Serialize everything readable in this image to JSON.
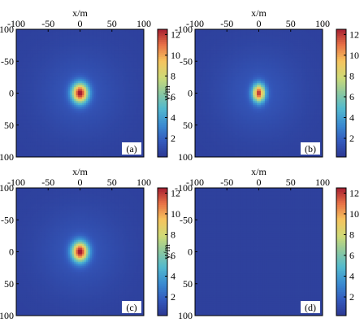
{
  "chart_data": [
    {
      "type": "heatmap",
      "panel_label": "(a)",
      "xlabel": "x/m",
      "ylabel": "y/m",
      "x_ticks": [
        "-100",
        "-50",
        "0",
        "50",
        "100"
      ],
      "y_ticks": [
        "-100",
        "-50",
        "0",
        "50",
        "100"
      ],
      "xlim": [
        -100,
        100
      ],
      "ylim": [
        100,
        -100
      ],
      "colorbar": {
        "ticks": [
          "12",
          "10",
          "8",
          "6",
          "4",
          "2"
        ],
        "range": [
          0.2,
          12.5
        ],
        "colormap": "parula"
      },
      "field": {
        "shape": "gaussian_spot",
        "center": [
          0,
          0
        ],
        "peak": 12,
        "background": 0.6,
        "sigma_x": 9,
        "sigma_y": 11,
        "pattern": "smooth"
      }
    },
    {
      "type": "heatmap",
      "panel_label": "(b)",
      "xlabel": "x/m",
      "ylabel": "y/m",
      "x_ticks": [
        "-100",
        "-50",
        "0",
        "50",
        "100"
      ],
      "y_ticks": [
        "-100",
        "-50",
        "0",
        "50",
        "100"
      ],
      "xlim": [
        -100,
        100
      ],
      "ylim": [
        100,
        -100
      ],
      "colorbar": {
        "ticks": [
          "12",
          "10",
          "8",
          "6",
          "4",
          "2"
        ],
        "range": [
          0.2,
          12.5
        ],
        "colormap": "parula"
      },
      "field": {
        "shape": "gaussian_spot",
        "center": [
          0,
          0
        ],
        "peak": 12.5,
        "background": 0.6,
        "sigma_x": 7,
        "sigma_y": 10,
        "pattern": "vertical_fringes"
      }
    },
    {
      "type": "heatmap",
      "panel_label": "(c)",
      "xlabel": "x/m",
      "ylabel": "y/m",
      "x_ticks": [
        "-100",
        "-50",
        "0",
        "50",
        "100"
      ],
      "y_ticks": [
        "-100",
        "-50",
        "0",
        "50",
        "100"
      ],
      "xlim": [
        -100,
        100
      ],
      "ylim": [
        100,
        -100
      ],
      "colorbar": {
        "ticks": [
          "12",
          "10",
          "8",
          "6",
          "4",
          "2"
        ],
        "range": [
          0.2,
          12.5
        ],
        "colormap": "parula"
      },
      "field": {
        "shape": "gaussian_spot",
        "center": [
          0,
          0
        ],
        "peak": 12,
        "background": 0.6,
        "sigma_x": 9,
        "sigma_y": 11,
        "pattern": "smooth"
      }
    },
    {
      "type": "heatmap",
      "panel_label": "(d)",
      "xlabel": "x/m",
      "ylabel": "y/m",
      "x_ticks": [
        "-100",
        "-50",
        "0",
        "50",
        "100"
      ],
      "y_ticks": [
        "-100",
        "-50",
        "0",
        "50",
        "100"
      ],
      "xlim": [
        -100,
        100
      ],
      "ylim": [
        100,
        -100
      ],
      "colorbar": {
        "ticks": [
          "12",
          "10",
          "8",
          "6",
          "4",
          "2"
        ],
        "range": [
          0.2,
          12.5
        ],
        "colormap": "parula"
      },
      "field": {
        "shape": "uniform",
        "center": [
          0,
          0
        ],
        "peak": 0.6,
        "background": 0.6,
        "sigma_x": 0,
        "sigma_y": 0,
        "pattern": "flat"
      }
    }
  ]
}
